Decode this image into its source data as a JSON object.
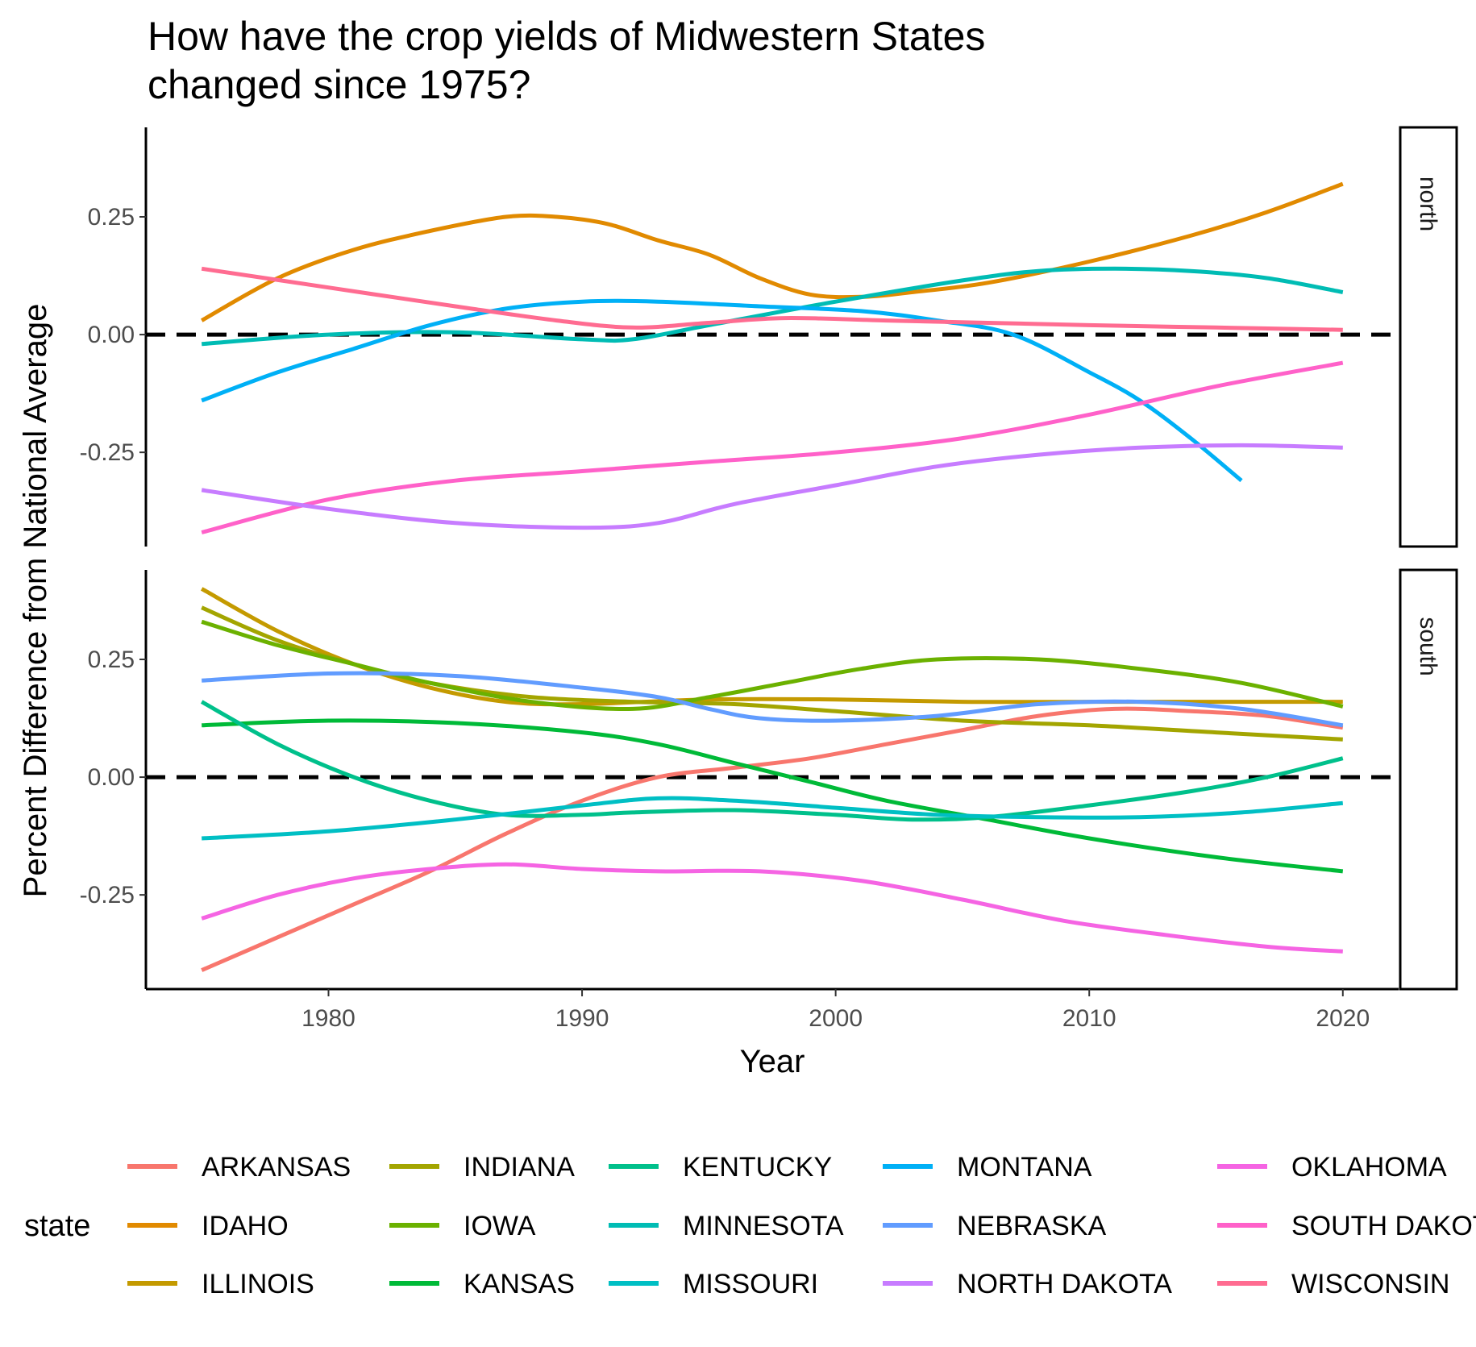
{
  "chart_data": {
    "type": "line",
    "title": "How have the crop yields of Midwestern States changed since 1975?",
    "title_lines": [
      "How have the crop yields of Midwestern States",
      "changed since 1975?"
    ],
    "xlabel": "Year",
    "ylabel": "Percent Difference from National Average",
    "xlim": [
      1972.8,
      2022.2
    ],
    "ylim": [
      -0.45,
      0.44
    ],
    "x_ticks": [
      1980,
      1990,
      2000,
      2010,
      2020
    ],
    "x_tick_labels": [
      "1980",
      "1990",
      "2000",
      "2010",
      "2020"
    ],
    "y_ticks": [
      -0.25,
      0,
      0.25
    ],
    "y_tick_labels": [
      "-0.25",
      "0.00",
      "0.25"
    ],
    "reference_line": {
      "y": 0,
      "style": "dashed",
      "color": "#000000"
    },
    "grid": false,
    "legend": {
      "title": "state",
      "position": "bottom",
      "columns": 5
    },
    "facets": [
      {
        "label": "north",
        "series": [
          {
            "name": "IDAHO",
            "color": "#E18A00",
            "points": [
              [
                1975,
                0.03
              ],
              [
                1978,
                0.12
              ],
              [
                1981,
                0.18
              ],
              [
                1984,
                0.22
              ],
              [
                1987,
                0.25
              ],
              [
                1989,
                0.25
              ],
              [
                1991,
                0.235
              ],
              [
                1993,
                0.2
              ],
              [
                1995,
                0.17
              ],
              [
                1997,
                0.12
              ],
              [
                1999,
                0.085
              ],
              [
                2001,
                0.08
              ],
              [
                2003,
                0.09
              ],
              [
                2006,
                0.11
              ],
              [
                2010,
                0.155
              ],
              [
                2014,
                0.21
              ],
              [
                2017,
                0.26
              ],
              [
                2020,
                0.32
              ]
            ]
          },
          {
            "name": "MINNESOTA",
            "color": "#00BCB4",
            "points": [
              [
                1975,
                -0.02
              ],
              [
                1980,
                0.0
              ],
              [
                1985,
                0.005
              ],
              [
                1990,
                -0.01
              ],
              [
                1992,
                -0.01
              ],
              [
                1995,
                0.02
              ],
              [
                2000,
                0.07
              ],
              [
                2005,
                0.115
              ],
              [
                2008,
                0.135
              ],
              [
                2011,
                0.14
              ],
              [
                2014,
                0.135
              ],
              [
                2017,
                0.12
              ],
              [
                2020,
                0.09
              ]
            ]
          },
          {
            "name": "MONTANA",
            "color": "#00B0F6",
            "points": [
              [
                1975,
                -0.14
              ],
              [
                1978,
                -0.08
              ],
              [
                1981,
                -0.03
              ],
              [
                1984,
                0.02
              ],
              [
                1987,
                0.055
              ],
              [
                1990,
                0.07
              ],
              [
                1993,
                0.07
              ],
              [
                1997,
                0.06
              ],
              [
                2001,
                0.05
              ],
              [
                2004,
                0.03
              ],
              [
                2007,
                0.0
              ],
              [
                2010,
                -0.08
              ],
              [
                2012,
                -0.14
              ],
              [
                2014,
                -0.22
              ],
              [
                2016,
                -0.31
              ]
            ]
          },
          {
            "name": "SOUTH DAKOTA",
            "color": "#FF61C9",
            "points": [
              [
                1975,
                -0.42
              ],
              [
                1980,
                -0.35
              ],
              [
                1985,
                -0.31
              ],
              [
                1990,
                -0.29
              ],
              [
                1995,
                -0.27
              ],
              [
                2000,
                -0.25
              ],
              [
                2005,
                -0.22
              ],
              [
                2010,
                -0.17
              ],
              [
                2015,
                -0.11
              ],
              [
                2020,
                -0.06
              ]
            ]
          },
          {
            "name": "NORTH DAKOTA",
            "color": "#C77CFF",
            "points": [
              [
                1975,
                -0.33
              ],
              [
                1980,
                -0.37
              ],
              [
                1985,
                -0.4
              ],
              [
                1990,
                -0.41
              ],
              [
                1993,
                -0.4
              ],
              [
                1996,
                -0.36
              ],
              [
                2000,
                -0.32
              ],
              [
                2004,
                -0.28
              ],
              [
                2008,
                -0.255
              ],
              [
                2012,
                -0.24
              ],
              [
                2016,
                -0.235
              ],
              [
                2020,
                -0.24
              ]
            ]
          },
          {
            "name": "WISCONSIN",
            "color": "#FF6C91",
            "points": [
              [
                1975,
                0.14
              ],
              [
                1980,
                0.1
              ],
              [
                1985,
                0.06
              ],
              [
                1989,
                0.03
              ],
              [
                1992,
                0.015
              ],
              [
                1995,
                0.025
              ],
              [
                1998,
                0.035
              ],
              [
                2002,
                0.03
              ],
              [
                2006,
                0.025
              ],
              [
                2010,
                0.02
              ],
              [
                2015,
                0.015
              ],
              [
                2020,
                0.01
              ]
            ]
          }
        ]
      },
      {
        "label": "south",
        "series": [
          {
            "name": "ARKANSAS",
            "color": "#F8766D",
            "points": [
              [
                1975,
                -0.41
              ],
              [
                1978,
                -0.34
              ],
              [
                1981,
                -0.27
              ],
              [
                1984,
                -0.2
              ],
              [
                1987,
                -0.12
              ],
              [
                1990,
                -0.05
              ],
              [
                1993,
                0.0
              ],
              [
                1996,
                0.02
              ],
              [
                1999,
                0.04
              ],
              [
                2002,
                0.07
              ],
              [
                2005,
                0.1
              ],
              [
                2008,
                0.13
              ],
              [
                2011,
                0.145
              ],
              [
                2014,
                0.14
              ],
              [
                2017,
                0.13
              ],
              [
                2020,
                0.105
              ]
            ]
          },
          {
            "name": "ILLINOIS",
            "color": "#C49A00",
            "points": [
              [
                1975,
                0.4
              ],
              [
                1978,
                0.31
              ],
              [
                1981,
                0.24
              ],
              [
                1984,
                0.19
              ],
              [
                1987,
                0.16
              ],
              [
                1990,
                0.155
              ],
              [
                1995,
                0.165
              ],
              [
                2000,
                0.165
              ],
              [
                2005,
                0.16
              ],
              [
                2010,
                0.16
              ],
              [
                2015,
                0.16
              ],
              [
                2020,
                0.16
              ]
            ]
          },
          {
            "name": "INDIANA",
            "color": "#A3A500",
            "points": [
              [
                1975,
                0.36
              ],
              [
                1978,
                0.29
              ],
              [
                1981,
                0.24
              ],
              [
                1984,
                0.2
              ],
              [
                1988,
                0.17
              ],
              [
                1992,
                0.16
              ],
              [
                1996,
                0.155
              ],
              [
                2000,
                0.14
              ],
              [
                2005,
                0.12
              ],
              [
                2010,
                0.11
              ],
              [
                2015,
                0.095
              ],
              [
                2020,
                0.08
              ]
            ]
          },
          {
            "name": "IOWA",
            "color": "#6BB100",
            "points": [
              [
                1975,
                0.33
              ],
              [
                1978,
                0.28
              ],
              [
                1981,
                0.24
              ],
              [
                1984,
                0.2
              ],
              [
                1988,
                0.16
              ],
              [
                1992,
                0.145
              ],
              [
                1995,
                0.17
              ],
              [
                1998,
                0.2
              ],
              [
                2001,
                0.23
              ],
              [
                2004,
                0.25
              ],
              [
                2008,
                0.25
              ],
              [
                2012,
                0.23
              ],
              [
                2016,
                0.2
              ],
              [
                2020,
                0.15
              ]
            ]
          },
          {
            "name": "KANSAS",
            "color": "#00BA38",
            "points": [
              [
                1975,
                0.11
              ],
              [
                1980,
                0.12
              ],
              [
                1985,
                0.115
              ],
              [
                1990,
                0.095
              ],
              [
                1993,
                0.07
              ],
              [
                1996,
                0.03
              ],
              [
                1999,
                -0.01
              ],
              [
                2002,
                -0.05
              ],
              [
                2006,
                -0.09
              ],
              [
                2010,
                -0.13
              ],
              [
                2015,
                -0.17
              ],
              [
                2020,
                -0.2
              ]
            ]
          },
          {
            "name": "KENTUCKY",
            "color": "#00C08B",
            "points": [
              [
                1975,
                0.16
              ],
              [
                1978,
                0.07
              ],
              [
                1981,
                0.0
              ],
              [
                1984,
                -0.05
              ],
              [
                1987,
                -0.08
              ],
              [
                1990,
                -0.08
              ],
              [
                1992,
                -0.075
              ],
              [
                1996,
                -0.07
              ],
              [
                2000,
                -0.08
              ],
              [
                2003,
                -0.09
              ],
              [
                2006,
                -0.085
              ],
              [
                2010,
                -0.06
              ],
              [
                2014,
                -0.03
              ],
              [
                2017,
                0.0
              ],
              [
                2020,
                0.04
              ]
            ]
          },
          {
            "name": "MISSOURI",
            "color": "#00BFC4",
            "points": [
              [
                1975,
                -0.13
              ],
              [
                1980,
                -0.115
              ],
              [
                1985,
                -0.09
              ],
              [
                1990,
                -0.06
              ],
              [
                1993,
                -0.045
              ],
              [
                1996,
                -0.05
              ],
              [
                2000,
                -0.065
              ],
              [
                2004,
                -0.08
              ],
              [
                2008,
                -0.085
              ],
              [
                2012,
                -0.085
              ],
              [
                2016,
                -0.075
              ],
              [
                2020,
                -0.055
              ]
            ]
          },
          {
            "name": "NEBRASKA",
            "color": "#619CFF",
            "points": [
              [
                1975,
                0.205
              ],
              [
                1980,
                0.22
              ],
              [
                1985,
                0.215
              ],
              [
                1990,
                0.19
              ],
              [
                1993,
                0.17
              ],
              [
                1995,
                0.145
              ],
              [
                1997,
                0.125
              ],
              [
                2000,
                0.12
              ],
              [
                2004,
                0.13
              ],
              [
                2008,
                0.155
              ],
              [
                2012,
                0.16
              ],
              [
                2016,
                0.145
              ],
              [
                2020,
                0.11
              ]
            ]
          },
          {
            "name": "OKLAHOMA",
            "color": "#F564E3",
            "points": [
              [
                1975,
                -0.3
              ],
              [
                1978,
                -0.25
              ],
              [
                1981,
                -0.215
              ],
              [
                1984,
                -0.195
              ],
              [
                1987,
                -0.185
              ],
              [
                1990,
                -0.195
              ],
              [
                1993,
                -0.2
              ],
              [
                1997,
                -0.2
              ],
              [
                2001,
                -0.22
              ],
              [
                2005,
                -0.26
              ],
              [
                2009,
                -0.305
              ],
              [
                2013,
                -0.335
              ],
              [
                2017,
                -0.36
              ],
              [
                2020,
                -0.37
              ]
            ]
          }
        ]
      }
    ],
    "legend_entries": [
      {
        "name": "ARKANSAS",
        "color": "#F8766D"
      },
      {
        "name": "IDAHO",
        "color": "#E18A00"
      },
      {
        "name": "ILLINOIS",
        "color": "#C49A00"
      },
      {
        "name": "INDIANA",
        "color": "#A3A500"
      },
      {
        "name": "IOWA",
        "color": "#6BB100"
      },
      {
        "name": "KANSAS",
        "color": "#00BA38"
      },
      {
        "name": "KENTUCKY",
        "color": "#00C08B"
      },
      {
        "name": "MINNESOTA",
        "color": "#00BCB4"
      },
      {
        "name": "MISSOURI",
        "color": "#00BFC4"
      },
      {
        "name": "MONTANA",
        "color": "#00B0F6"
      },
      {
        "name": "NEBRASKA",
        "color": "#619CFF"
      },
      {
        "name": "NORTH DAKOTA",
        "color": "#C77CFF"
      },
      {
        "name": "OKLAHOMA",
        "color": "#F564E3"
      },
      {
        "name": "SOUTH DAKOTA",
        "color": "#FF61C9"
      },
      {
        "name": "WISCONSIN",
        "color": "#FF6C91"
      }
    ]
  }
}
